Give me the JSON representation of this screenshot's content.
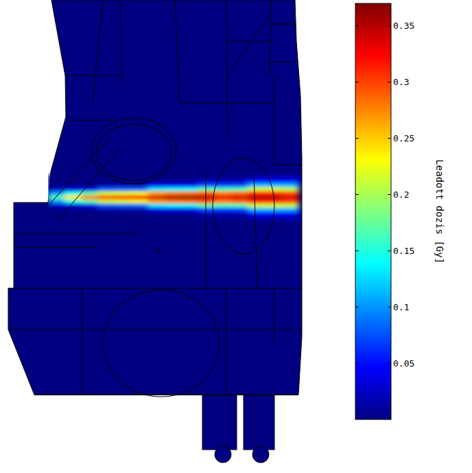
{
  "chart_data": {
    "type": "heatmap",
    "tick_labels": false,
    "cells": [
      [
        0,
        0,
        0,
        0,
        0,
        0,
        0.001,
        0.001,
        0.001,
        0.004,
        0.004,
        0.004,
        0.015,
        0.015,
        0.015
      ],
      [
        0,
        0,
        0,
        0.001,
        0.001,
        0.001,
        0.007,
        0.007,
        0.007,
        0.02,
        0.018,
        0.019,
        0.047,
        0.047,
        0.046
      ],
      [
        0.002,
        0.003,
        0.003,
        0.014,
        0.015,
        0.015,
        0.037,
        0.039,
        0.04,
        0.07,
        0.066,
        0.068,
        0.112,
        0.112,
        0.109
      ],
      [
        0.023,
        0.032,
        0.038,
        0.078,
        0.081,
        0.083,
        0.129,
        0.135,
        0.137,
        0.172,
        0.162,
        0.167,
        0.214,
        0.214,
        0.207
      ],
      [
        0.1,
        0.146,
        0.171,
        0.213,
        0.22,
        0.227,
        0.265,
        0.277,
        0.281,
        0.294,
        0.277,
        0.286,
        0.308,
        0.308,
        0.299
      ],
      [
        0.17,
        0.24,
        0.28,
        0.3,
        0.31,
        0.32,
        0.34,
        0.355,
        0.36,
        0.35,
        0.33,
        0.34,
        0.35,
        0.35,
        0.34
      ],
      [
        0.1,
        0.146,
        0.171,
        0.213,
        0.22,
        0.227,
        0.265,
        0.277,
        0.281,
        0.294,
        0.277,
        0.286,
        0.308,
        0.308,
        0.299
      ],
      [
        0.023,
        0.032,
        0.038,
        0.078,
        0.081,
        0.083,
        0.129,
        0.135,
        0.137,
        0.172,
        0.162,
        0.167,
        0.214,
        0.214,
        0.207
      ],
      [
        0.002,
        0.003,
        0.003,
        0.014,
        0.015,
        0.015,
        0.037,
        0.039,
        0.04,
        0.07,
        0.066,
        0.068,
        0.112,
        0.112,
        0.109
      ],
      [
        0,
        0,
        0,
        0.001,
        0.001,
        0.001,
        0.007,
        0.007,
        0.007,
        0.02,
        0.018,
        0.019,
        0.047,
        0.047,
        0.046
      ],
      [
        0,
        0,
        0,
        0,
        0,
        0,
        0.001,
        0.001,
        0.001,
        0.004,
        0.004,
        0.004,
        0.015,
        0.015,
        0.015
      ]
    ],
    "colorbar": {
      "label": "Leadott dozis [Gy]",
      "range": [
        0,
        0.37
      ],
      "ticks": [
        0.05,
        0.1,
        0.15,
        0.2,
        0.25,
        0.3,
        0.35
      ]
    }
  }
}
